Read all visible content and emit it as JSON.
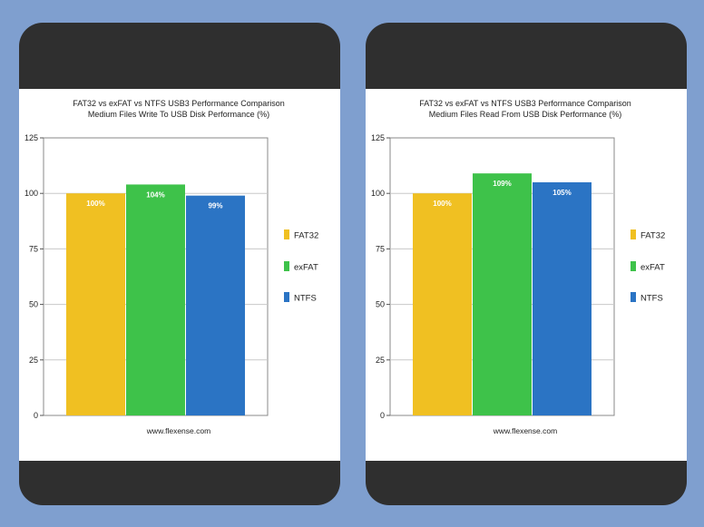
{
  "chart_data": [
    {
      "type": "bar",
      "title": "FAT32 vs exFAT vs NTFS USB3 Performance Comparison",
      "subtitle": "Medium Files Write To USB Disk Performance (%)",
      "categories": [
        "FAT32",
        "exFAT",
        "NTFS"
      ],
      "values": [
        100,
        104,
        99
      ],
      "value_labels": [
        "100%",
        "104%",
        "99%"
      ],
      "colors": [
        "#f0c022",
        "#3ec24a",
        "#2b74c4"
      ],
      "yticks": [
        "0",
        "25",
        "50",
        "75",
        "100",
        "125"
      ],
      "ylim": [
        0,
        125
      ],
      "legend": [
        "FAT32",
        "exFAT",
        "NTFS"
      ],
      "legend_position": "right",
      "grid": true,
      "source": "www.flexense.com"
    },
    {
      "type": "bar",
      "title": "FAT32 vs exFAT vs NTFS USB3 Performance Comparison",
      "subtitle": "Medium Files Read From USB Disk Performance (%)",
      "categories": [
        "FAT32",
        "exFAT",
        "NTFS"
      ],
      "values": [
        100,
        109,
        105
      ],
      "value_labels": [
        "100%",
        "109%",
        "105%"
      ],
      "colors": [
        "#f0c022",
        "#3ec24a",
        "#2b74c4"
      ],
      "yticks": [
        "0",
        "25",
        "50",
        "75",
        "100",
        "125"
      ],
      "ylim": [
        0,
        125
      ],
      "legend": [
        "FAT32",
        "exFAT",
        "NTFS"
      ],
      "legend_position": "right",
      "grid": true,
      "source": "www.flexense.com"
    }
  ]
}
